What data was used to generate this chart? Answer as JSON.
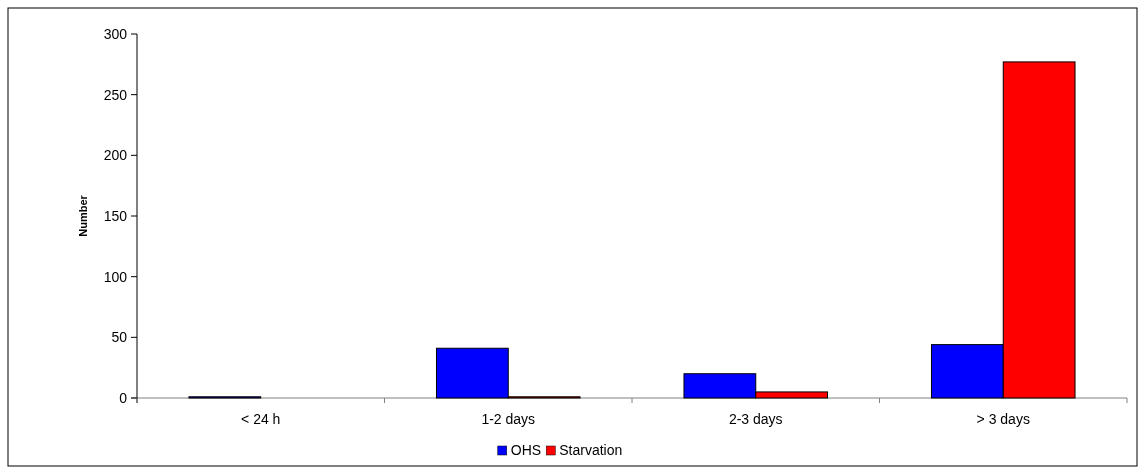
{
  "chart_data": {
    "type": "bar",
    "ylabel": "Number",
    "categories": [
      "< 24 h",
      "1-2 days",
      "2-3 days",
      "> 3 days"
    ],
    "series": [
      {
        "name": "OHS",
        "color": "#0000ff",
        "values": [
          1,
          41,
          20,
          44
        ]
      },
      {
        "name": "Starvation",
        "color": "#ff0000",
        "values": [
          0,
          1,
          5,
          277
        ]
      }
    ],
    "ylim": [
      0,
      300
    ],
    "yticks": [
      0,
      50,
      100,
      150,
      200,
      250,
      300
    ],
    "grid": false,
    "legend": "bottom"
  }
}
